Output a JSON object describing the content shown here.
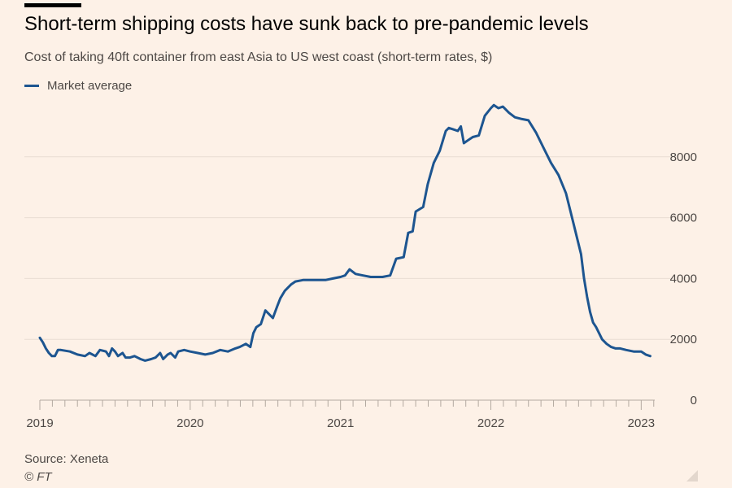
{
  "title": "Short-term shipping costs have sunk back to pre-pandemic levels",
  "subtitle": "Cost of taking 40ft container from east Asia to US west coast (short-term rates, $)",
  "legend": {
    "label": "Market average",
    "color": "#1d5590"
  },
  "source": "Source: Xeneta",
  "credit": "© FT",
  "chart_data": {
    "type": "line",
    "title": "Short-term shipping costs have sunk back to pre-pandemic levels",
    "ylabel": "Cost of taking 40ft container from east Asia to US west coast (short-term rates, $)",
    "xlabel": "",
    "xlim": [
      2019.0,
      2023.09
    ],
    "ylim": [
      0,
      10000
    ],
    "yticks": [
      0,
      2000,
      4000,
      6000,
      8000
    ],
    "ytick_labels": [
      "0",
      "2000",
      "4000",
      "6000",
      "8000"
    ],
    "xticks": [
      2019,
      2020,
      2021,
      2022,
      2023
    ],
    "xtick_labels": [
      "2019",
      "2020",
      "2021",
      "2022",
      "2023"
    ],
    "grid": true,
    "series": [
      {
        "name": "Market average",
        "color": "#1d5590",
        "x": [
          2019.0,
          2019.02,
          2019.04,
          2019.06,
          2019.08,
          2019.1,
          2019.12,
          2019.14,
          2019.2,
          2019.25,
          2019.3,
          2019.33,
          2019.37,
          2019.4,
          2019.44,
          2019.46,
          2019.48,
          2019.5,
          2019.52,
          2019.55,
          2019.57,
          2019.6,
          2019.63,
          2019.67,
          2019.7,
          2019.74,
          2019.77,
          2019.8,
          2019.82,
          2019.85,
          2019.87,
          2019.9,
          2019.92,
          2019.96,
          2020.0,
          2020.05,
          2020.1,
          2020.15,
          2020.2,
          2020.25,
          2020.3,
          2020.33,
          2020.37,
          2020.4,
          2020.42,
          2020.44,
          2020.47,
          2020.5,
          2020.52,
          2020.55,
          2020.58,
          2020.6,
          2020.63,
          2020.67,
          2020.7,
          2020.75,
          2020.8,
          2020.85,
          2020.9,
          2020.95,
          2021.0,
          2021.03,
          2021.06,
          2021.1,
          2021.15,
          2021.2,
          2021.28,
          2021.33,
          2021.37,
          2021.42,
          2021.45,
          2021.48,
          2021.5,
          2021.55,
          2021.58,
          2021.62,
          2021.66,
          2021.7,
          2021.72,
          2021.75,
          2021.78,
          2021.8,
          2021.82,
          2021.85,
          2021.88,
          2021.92,
          2021.96,
          2022.0,
          2022.02,
          2022.05,
          2022.08,
          2022.12,
          2022.16,
          2022.2,
          2022.25,
          2022.3,
          2022.35,
          2022.4,
          2022.45,
          2022.5,
          2022.55,
          2022.6,
          2022.62,
          2022.64,
          2022.66,
          2022.68,
          2022.7,
          2022.72,
          2022.74,
          2022.77,
          2022.8,
          2022.83,
          2022.86,
          2022.9,
          2022.95,
          2023.0,
          2023.03,
          2023.06
        ],
        "y": [
          2050,
          1900,
          1700,
          1550,
          1450,
          1450,
          1650,
          1650,
          1600,
          1500,
          1450,
          1550,
          1450,
          1650,
          1600,
          1450,
          1700,
          1600,
          1450,
          1550,
          1400,
          1400,
          1450,
          1350,
          1300,
          1350,
          1400,
          1550,
          1350,
          1500,
          1550,
          1400,
          1600,
          1650,
          1600,
          1550,
          1500,
          1550,
          1650,
          1600,
          1700,
          1750,
          1850,
          1750,
          2200,
          2400,
          2500,
          2950,
          2850,
          2700,
          3100,
          3350,
          3600,
          3800,
          3900,
          3950,
          3950,
          3950,
          3950,
          4000,
          4050,
          4100,
          4300,
          4150,
          4100,
          4050,
          4050,
          4100,
          4650,
          4700,
          5500,
          5550,
          6200,
          6350,
          7100,
          7800,
          8200,
          8850,
          8950,
          8900,
          8850,
          9000,
          8450,
          8550,
          8650,
          8700,
          9350,
          9600,
          9700,
          9600,
          9650,
          9450,
          9300,
          9250,
          9200,
          8800,
          8300,
          7800,
          7400,
          6800,
          5800,
          4800,
          4000,
          3400,
          2900,
          2550,
          2400,
          2200,
          2000,
          1850,
          1750,
          1700,
          1700,
          1650,
          1600,
          1600,
          1500,
          1450
        ]
      }
    ]
  }
}
